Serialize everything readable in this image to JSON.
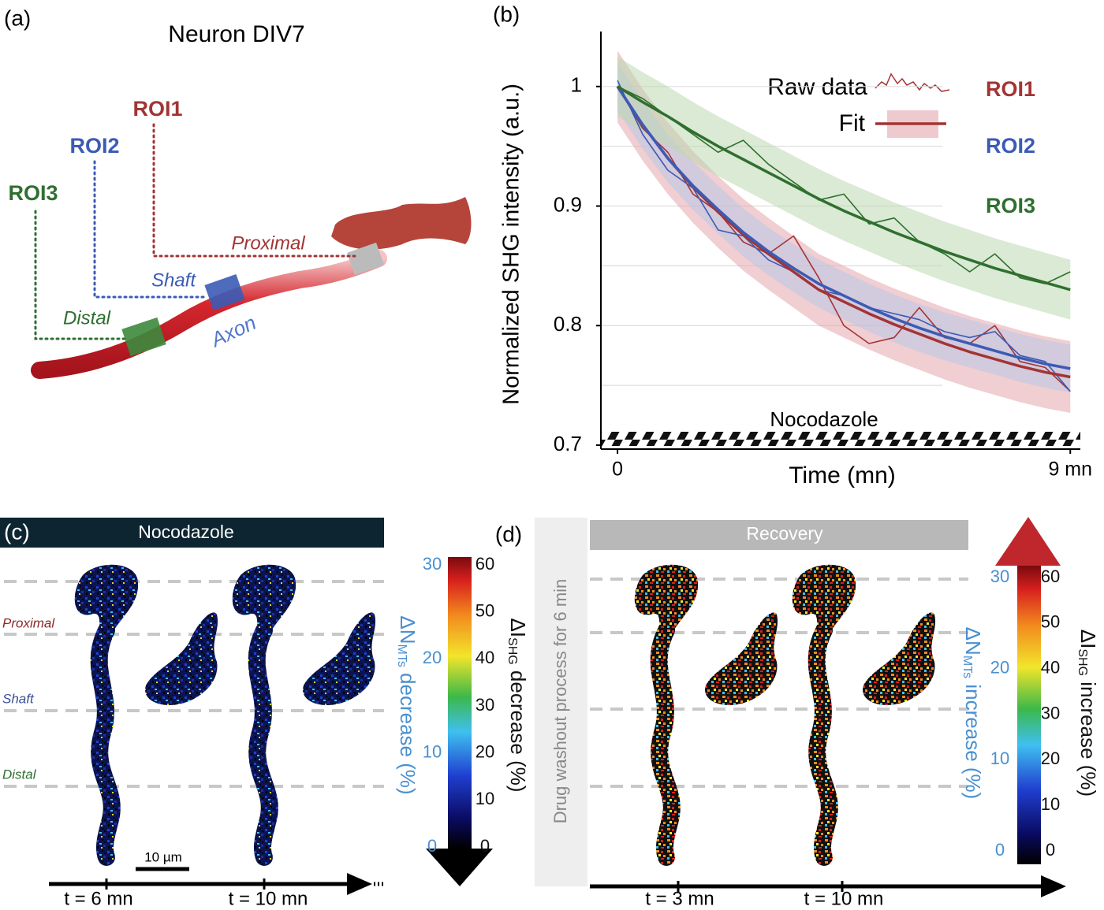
{
  "panel_a": {
    "label": "(a)",
    "title": "Neuron DIV7",
    "roi1": "ROI1",
    "roi2": "ROI2",
    "roi3": "ROI3",
    "proximal": "Proximal",
    "shaft": "Shaft",
    "distal": "Distal",
    "axon": "Axon"
  },
  "chart_data": {
    "type": "line",
    "label": "(b)",
    "ylabel": "Normalized SHG intensity (a.u.)",
    "xlabel": "Time (mn)",
    "annotation": "Nocodazole",
    "legend_raw": "Raw data",
    "legend_fit": "Fit",
    "x": [
      0,
      0.5,
      1,
      1.5,
      2,
      2.5,
      3,
      3.5,
      4,
      4.5,
      5,
      5.5,
      6,
      6.5,
      7,
      7.5,
      8,
      8.5,
      9
    ],
    "xlim": [
      -0.33,
      9.2
    ],
    "xticks": [
      0,
      {
        "value": 9,
        "label": "9 mn"
      }
    ],
    "ylim": [
      0.7,
      1.046
    ],
    "yticks": [
      0.7,
      0.8,
      0.9,
      1
    ],
    "yminor": [
      0.75,
      0.85,
      0.95
    ],
    "grid": true,
    "series": [
      {
        "name": "ROI1",
        "color": "#a33434",
        "band_color": "#e3a6ad",
        "ci": 0.03,
        "values": [
          1.0,
          0.965,
          0.945,
          0.91,
          0.895,
          0.87,
          0.86,
          0.875,
          0.84,
          0.8,
          0.785,
          0.79,
          0.815,
          0.79,
          0.785,
          0.8,
          0.77,
          0.765,
          0.745
        ],
        "fit": [
          1.0,
          0.968,
          0.94,
          0.916,
          0.895,
          0.876,
          0.86,
          0.845,
          0.83,
          0.82,
          0.81,
          0.801,
          0.793,
          0.785,
          0.778,
          0.772,
          0.766,
          0.761,
          0.757
        ]
      },
      {
        "name": "ROI2",
        "color": "#3b5bb5",
        "band_color": "#b9c6e6",
        "ci": 0.02,
        "values": [
          1.005,
          0.96,
          0.93,
          0.915,
          0.88,
          0.875,
          0.855,
          0.845,
          0.83,
          0.825,
          0.815,
          0.81,
          0.805,
          0.795,
          0.79,
          0.795,
          0.775,
          0.77,
          0.745
        ],
        "fit": [
          1.0,
          0.968,
          0.94,
          0.917,
          0.897,
          0.878,
          0.862,
          0.848,
          0.835,
          0.825,
          0.815,
          0.806,
          0.798,
          0.791,
          0.785,
          0.779,
          0.773,
          0.768,
          0.764
        ]
      },
      {
        "name": "ROI3",
        "color": "#2f6f2f",
        "band_color": "#bcd8b0",
        "ci": 0.025,
        "values": [
          1.0,
          0.99,
          0.975,
          0.96,
          0.945,
          0.955,
          0.935,
          0.92,
          0.905,
          0.91,
          0.885,
          0.89,
          0.87,
          0.86,
          0.845,
          0.86,
          0.84,
          0.835,
          0.845
        ],
        "fit": [
          1.0,
          0.987,
          0.975,
          0.962,
          0.95,
          0.939,
          0.928,
          0.917,
          0.906,
          0.896,
          0.887,
          0.878,
          0.87,
          0.862,
          0.855,
          0.848,
          0.842,
          0.836,
          0.83
        ]
      }
    ]
  },
  "panel_c": {
    "label": "(c)",
    "header": "Nocodazole",
    "proximal": "Proximal",
    "shaft": "Shaft",
    "distal": "Distal",
    "scale": "10 µm",
    "t1": "t = 6 mn",
    "t2": "t = 10 mn",
    "colorbar": {
      "n_label": {
        "delta": "ΔN",
        "sub": "MTs",
        "rest": " decrease (%)"
      },
      "i_label": {
        "delta": "ΔI",
        "sub": "SHG",
        "rest": " decrease (%)"
      },
      "n_lim": [
        0,
        30
      ],
      "n_ticks": [
        0,
        10,
        20,
        30
      ],
      "i_lim": [
        0,
        60
      ],
      "i_ticks": [
        0,
        10,
        20,
        30,
        40,
        50,
        60
      ]
    }
  },
  "panel_d": {
    "label": "(d)",
    "washout": "Drug washout  process for 6 min",
    "header": "Recovery",
    "t1": "t = 3 mn",
    "t2": "t = 10 mn",
    "colorbar": {
      "n_label": {
        "delta": "ΔN",
        "sub": "MTs",
        "rest": " increase (%)"
      },
      "i_label": {
        "delta": "ΔI",
        "sub": "SHG",
        "rest": " increase (%)"
      },
      "n_lim": [
        0,
        30
      ],
      "n_ticks": [
        0,
        10,
        20,
        30
      ],
      "i_lim": [
        0,
        60
      ],
      "i_ticks": [
        0,
        10,
        20,
        30,
        40,
        50,
        60
      ]
    }
  }
}
